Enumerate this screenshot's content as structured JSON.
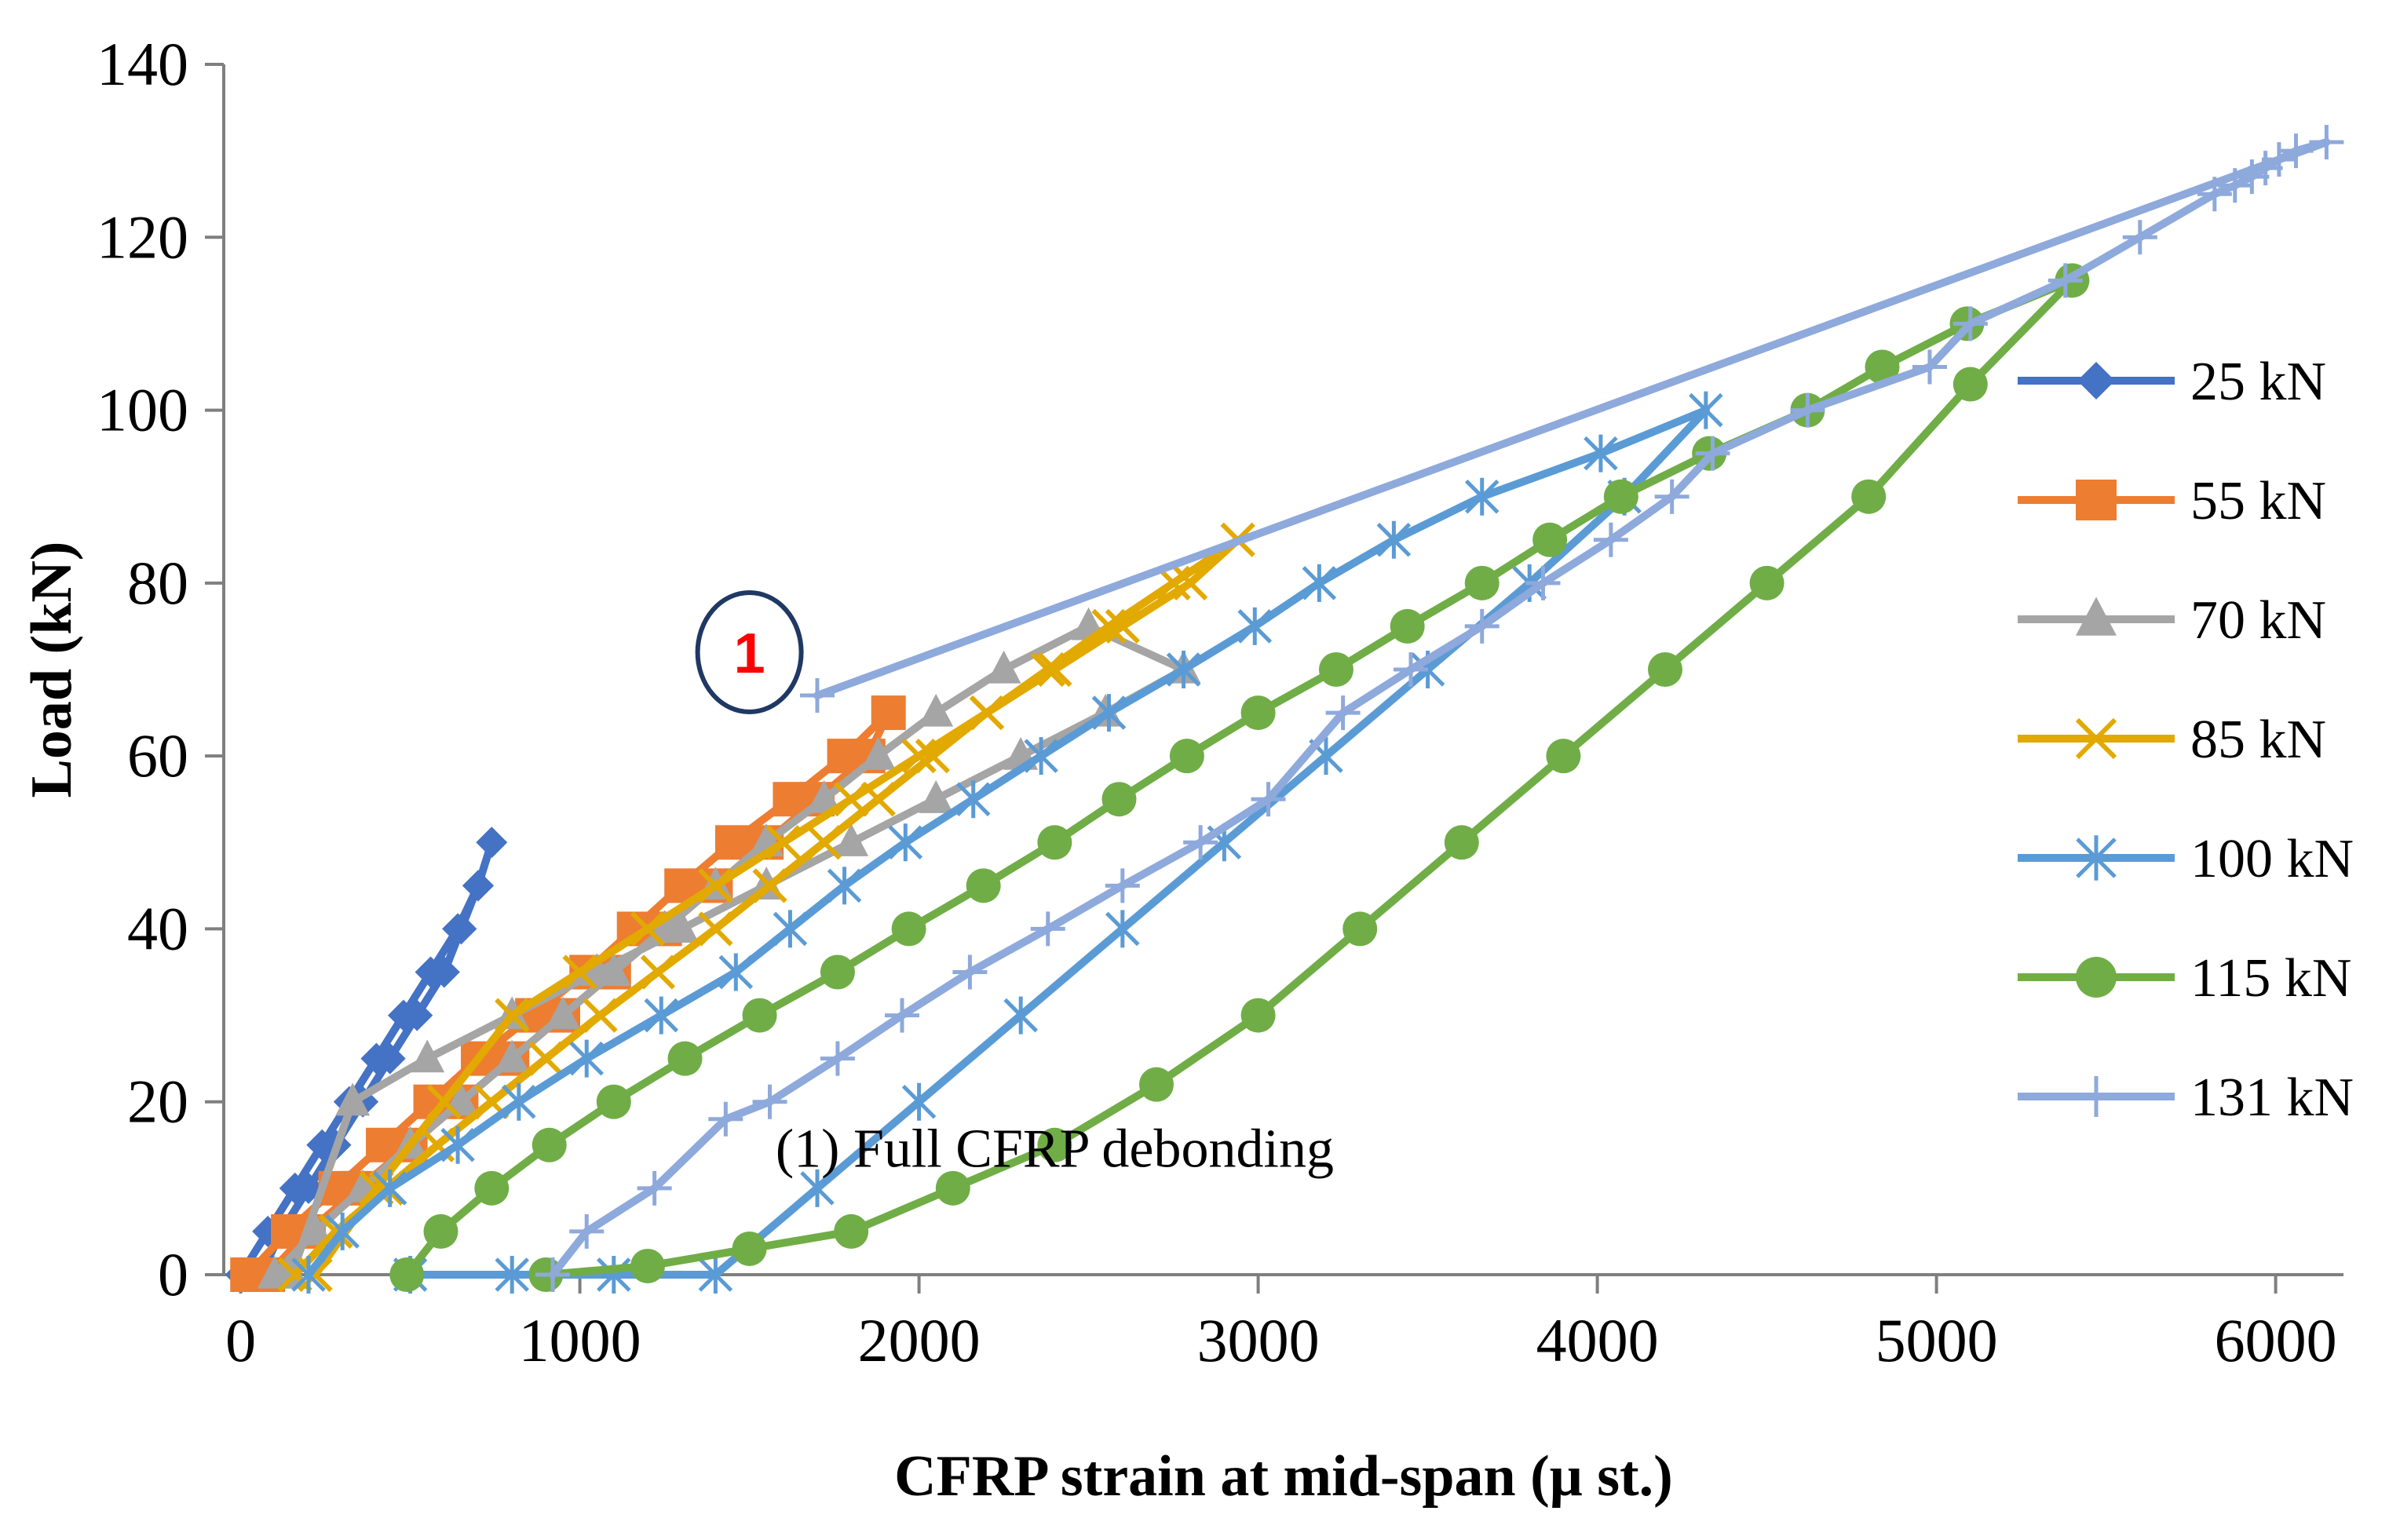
{
  "chart_data": {
    "type": "line",
    "title": "",
    "xlabel": "CFRP strain at mid-span (μ st.)",
    "ylabel": "Load  (kN)",
    "xlim": [
      -50,
      6200
    ],
    "ylim": [
      0,
      140
    ],
    "xticks": [
      0,
      1000,
      2000,
      3000,
      4000,
      5000,
      6000
    ],
    "yticks": [
      0,
      20,
      40,
      60,
      80,
      100,
      120,
      140
    ],
    "grid": false,
    "legend_position": "right",
    "annotation": {
      "marker_label": "1",
      "marker_x": 1500,
      "marker_y": 72,
      "note": "(1) Full CFRP debonding"
    },
    "series": [
      {
        "name": "25 kN",
        "color": "#4472C4",
        "marker": "diamond",
        "x": [
          0,
          80,
          160,
          240,
          320,
          400,
          480,
          560,
          640,
          700,
          740,
          700,
          650,
          600,
          520,
          440,
          360,
          280,
          200,
          120,
          60
        ],
        "y": [
          0,
          5,
          10,
          15,
          20,
          25,
          30,
          35,
          40,
          45,
          50,
          45,
          40,
          35,
          30,
          25,
          20,
          15,
          10,
          5,
          0
        ]
      },
      {
        "name": "55 kN",
        "color": "#ED7D31",
        "marker": "square",
        "x": [
          20,
          140,
          280,
          420,
          560,
          700,
          860,
          1020,
          1160,
          1300,
          1450,
          1620,
          1780,
          1910,
          1850,
          1700,
          1550,
          1400,
          1250,
          1100,
          950,
          800,
          650,
          500,
          350,
          200,
          80
        ],
        "y": [
          0,
          5,
          10,
          15,
          20,
          25,
          30,
          35,
          40,
          45,
          50,
          55,
          60,
          65,
          60,
          55,
          50,
          45,
          40,
          35,
          30,
          25,
          20,
          15,
          10,
          5,
          0
        ]
      },
      {
        "name": "70 kN",
        "color": "#A5A5A5",
        "marker": "triangle",
        "x": [
          100,
          220,
          360,
          500,
          650,
          800,
          950,
          1100,
          1250,
          1400,
          1550,
          1720,
          1880,
          2050,
          2250,
          2500,
          2780,
          2550,
          2300,
          2050,
          1800,
          1550,
          1300,
          1050,
          800,
          550,
          330,
          150
        ],
        "y": [
          0,
          5,
          10,
          15,
          20,
          25,
          30,
          35,
          40,
          45,
          50,
          55,
          60,
          65,
          70,
          75,
          70,
          65,
          60,
          55,
          50,
          45,
          40,
          35,
          30,
          25,
          20,
          0
        ]
      },
      {
        "name": "85 kN",
        "color": "#E2A900",
        "marker": "x",
        "x": [
          160,
          280,
          430,
          580,
          740,
          900,
          1060,
          1230,
          1400,
          1560,
          1720,
          1880,
          2040,
          2200,
          2380,
          2560,
          2750,
          2940,
          2800,
          2600,
          2400,
          2200,
          2000,
          1800,
          1600,
          1400,
          1200,
          1000,
          800,
          600,
          400,
          220
        ],
        "y": [
          0,
          5,
          10,
          15,
          20,
          25,
          30,
          35,
          40,
          45,
          50,
          55,
          60,
          65,
          70,
          75,
          80,
          85,
          80,
          75,
          70,
          65,
          60,
          55,
          50,
          45,
          40,
          35,
          30,
          20,
          10,
          0
        ]
      },
      {
        "name": "100 kN",
        "color": "#5B9BD5",
        "marker": "asterisk",
        "x": [
          200,
          300,
          440,
          640,
          820,
          1020,
          1240,
          1460,
          1620,
          1780,
          1960,
          2160,
          2360,
          2560,
          2780,
          2990,
          3180,
          3400,
          3660,
          4010,
          4320,
          4080,
          3800,
          3500,
          3200,
          2900,
          2600,
          2300,
          2000,
          1700,
          1400,
          1100,
          800,
          500
        ],
        "y": [
          0,
          5,
          10,
          15,
          20,
          25,
          30,
          35,
          40,
          45,
          50,
          55,
          60,
          65,
          70,
          75,
          80,
          85,
          90,
          95,
          100,
          90,
          80,
          70,
          60,
          50,
          40,
          30,
          20,
          10,
          0,
          0,
          0,
          0
        ]
      },
      {
        "name": "115 kN",
        "color": "#70AD47",
        "marker": "circle",
        "x": [
          490,
          590,
          740,
          910,
          1100,
          1310,
          1530,
          1760,
          1970,
          2190,
          2400,
          2590,
          2790,
          3000,
          3230,
          3440,
          3660,
          3860,
          4070,
          4330,
          4620,
          4840,
          5090,
          5400,
          5100,
          4800,
          4500,
          4200,
          3900,
          3600,
          3300,
          3000,
          2700,
          2400,
          2100,
          1800,
          1500,
          1200,
          900
        ],
        "y": [
          0,
          5,
          10,
          15,
          20,
          25,
          30,
          35,
          40,
          45,
          50,
          55,
          60,
          65,
          70,
          75,
          80,
          85,
          90,
          95,
          100,
          105,
          110,
          115,
          103,
          90,
          80,
          70,
          60,
          50,
          40,
          30,
          22,
          15,
          10,
          5,
          3,
          1,
          0
        ]
      },
      {
        "name": "131 kN",
        "color": "#8EA9DB",
        "marker": "plus",
        "x": [
          920,
          1020,
          1220,
          1430,
          1560,
          1760,
          1950,
          2150,
          2380,
          2600,
          2830,
          3030,
          3250,
          3450,
          3660,
          3840,
          4040,
          4220,
          4340,
          4620,
          4980,
          5100,
          5380,
          5600,
          5820,
          5880,
          5930,
          5970,
          6010,
          6060,
          6150,
          1700
        ],
        "y": [
          0,
          5,
          10,
          18,
          20,
          25,
          30,
          35,
          40,
          45,
          50,
          55,
          65,
          70,
          75,
          80,
          85,
          90,
          95,
          100,
          105,
          110,
          115,
          120,
          125,
          126,
          127,
          128,
          129,
          130,
          131,
          67
        ]
      }
    ]
  }
}
